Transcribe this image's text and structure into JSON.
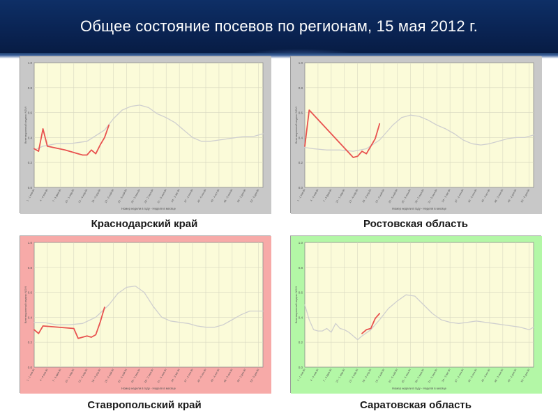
{
  "title": "Общее состояние посевов по регионам, 15 мая 2012 г.",
  "colors": {
    "header_bg": "#0b2a5c",
    "plot_bg": "#fbfbd9",
    "current_year_line": "#e8524f",
    "baseline_line": "#cfcfcf",
    "panel_gray": "#c8c8c8",
    "panel_red": "#f7aaa8",
    "panel_green": "#b3f7a6"
  },
  "chart_data": [
    {
      "type": "line",
      "region": "Краснодарский край",
      "frame": "gray",
      "ylabel": "Вегетационный индекс NDVI",
      "xlabel": "Номер недели в году - Неделя в месяце",
      "ylim": [
        0,
        1
      ],
      "yticks": [
        "0.0",
        "0.2",
        "0.4",
        "0.6",
        "0.8",
        "1.0"
      ],
      "xticks": [
        "1 - 1 янв Вт",
        "4 - 4 янв Вт",
        "7 - 3 фев Вт",
        "10 - 1 мар Вт",
        "13 - 4 мар Вт",
        "16 - 3 апр Вт",
        "19 - 2 май Вт",
        "22 - 5 май Вт",
        "25 - 3 июн Вт",
        "28 - 2 июл Вт",
        "31 - 5 июл Вт",
        "34 - 3 авг Вт",
        "37 - 2 сен Вт",
        "40 - 5 сен Вт",
        "43 - 4 окт Вт",
        "46 - 3 ноя Вт",
        "49 - 2 дек Вт",
        "52 - 5 дек Вт"
      ],
      "grid": true,
      "series": [
        {
          "x": [
            1,
            3,
            6,
            9,
            13,
            17,
            19,
            21,
            23,
            25,
            27,
            29,
            31,
            33,
            35,
            37,
            39,
            41,
            43,
            45,
            47,
            49,
            51,
            53
          ],
          "y": [
            0.3,
            0.33,
            0.35,
            0.35,
            0.37,
            0.46,
            0.55,
            0.62,
            0.65,
            0.66,
            0.64,
            0.59,
            0.56,
            0.52,
            0.46,
            0.4,
            0.37,
            0.37,
            0.38,
            0.39,
            0.4,
            0.41,
            0.41,
            0.43
          ]
        },
        {
          "x": [
            1,
            2,
            3,
            4,
            8,
            11,
            12,
            13,
            14,
            15,
            16,
            17,
            18
          ],
          "y": [
            0.31,
            0.29,
            0.47,
            0.33,
            0.3,
            0.27,
            0.26,
            0.26,
            0.3,
            0.27,
            0.34,
            0.4,
            0.5
          ]
        }
      ]
    },
    {
      "type": "line",
      "region": "Ростовская область",
      "frame": "gray",
      "ylabel": "Вегетационный индекс NDVI",
      "xlabel": "Номер недели в году - Неделя в месяце",
      "ylim": [
        0,
        1
      ],
      "yticks": [
        "0.0",
        "0.2",
        "0.4",
        "0.6",
        "0.8",
        "1.0"
      ],
      "xticks": [
        "1 - 1 янв Вт",
        "4 - 4 янв Вт",
        "7 - 3 фев Вт",
        "10 - 1 мар Вт",
        "13 - 4 мар Вт",
        "16 - 3 апр Вт",
        "19 - 2 май Вт",
        "22 - 5 май Вт",
        "25 - 3 июн Вт",
        "28 - 2 июл Вт",
        "31 - 5 июл Вт",
        "34 - 3 авг Вт",
        "37 - 2 сен Вт",
        "40 - 5 сен Вт",
        "43 - 4 окт Вт",
        "46 - 3 ноя Вт",
        "49 - 2 дек Вт",
        "52 - 5 дек Вт"
      ],
      "grid": true,
      "series": [
        {
          "x": [
            1,
            3,
            6,
            9,
            12,
            15,
            18,
            21,
            23,
            25,
            27,
            29,
            31,
            33,
            35,
            37,
            39,
            41,
            43,
            45,
            47,
            49,
            51,
            53
          ],
          "y": [
            0.32,
            0.31,
            0.3,
            0.3,
            0.29,
            0.31,
            0.38,
            0.5,
            0.56,
            0.58,
            0.57,
            0.54,
            0.5,
            0.47,
            0.43,
            0.38,
            0.35,
            0.34,
            0.35,
            0.37,
            0.39,
            0.4,
            0.4,
            0.42
          ]
        },
        {
          "x": [
            1,
            2,
            12,
            13,
            14,
            15,
            16,
            17,
            18
          ],
          "y": [
            0.33,
            0.62,
            0.24,
            0.25,
            0.29,
            0.27,
            0.33,
            0.39,
            0.51
          ]
        }
      ]
    },
    {
      "type": "line",
      "region": "Ставропольский край",
      "frame": "red",
      "ylabel": "Вегетационный индекс NDVI",
      "xlabel": "Номер недели в году - Неделя в месяце",
      "ylim": [
        0,
        1
      ],
      "yticks": [
        "0.0",
        "0.2",
        "0.4",
        "0.6",
        "0.8",
        "1.0"
      ],
      "xticks": [
        "1 - 1 янв Вт",
        "4 - 4 янв Вт",
        "7 - 3 фев Вт",
        "10 - 1 мар Вт",
        "13 - 4 мар Вт",
        "16 - 3 апр Вт",
        "19 - 2 май Вт",
        "22 - 5 май Вт",
        "25 - 3 июн Вт",
        "28 - 2 июл Вт",
        "31 - 5 июл Вт",
        "34 - 3 авг Вт",
        "37 - 2 сен Вт",
        "40 - 5 сен Вт",
        "43 - 4 окт Вт",
        "46 - 3 ноя Вт",
        "49 - 2 дек Вт",
        "52 - 5 дек Вт"
      ],
      "grid": true,
      "series": [
        {
          "x": [
            1,
            3,
            6,
            9,
            12,
            15,
            18,
            20,
            22,
            24,
            26,
            28,
            30,
            32,
            34,
            36,
            38,
            40,
            42,
            44,
            46,
            48,
            50,
            52,
            53
          ],
          "y": [
            0.36,
            0.36,
            0.34,
            0.34,
            0.35,
            0.4,
            0.5,
            0.59,
            0.64,
            0.65,
            0.6,
            0.49,
            0.4,
            0.37,
            0.36,
            0.35,
            0.33,
            0.32,
            0.32,
            0.34,
            0.38,
            0.42,
            0.45,
            0.45,
            0.45
          ]
        },
        {
          "x": [
            1,
            2,
            3,
            10,
            11,
            12,
            13,
            14,
            15,
            16,
            17
          ],
          "y": [
            0.3,
            0.27,
            0.33,
            0.31,
            0.23,
            0.24,
            0.25,
            0.24,
            0.26,
            0.36,
            0.48
          ]
        }
      ]
    },
    {
      "type": "line",
      "region": "Саратовская область",
      "frame": "green",
      "ylabel": "Вегетационный индекс NDVI",
      "xlabel": "Номер недели в году - Неделя в месяце",
      "ylim": [
        0,
        1
      ],
      "yticks": [
        "0.0",
        "0.2",
        "0.4",
        "0.6",
        "0.8",
        "1.0"
      ],
      "xticks": [
        "1 - 1 янв Вт",
        "4 - 4 янв Вт",
        "7 - 3 фев Вт",
        "10 - 1 мар Вт",
        "13 - 4 мар Вт",
        "16 - 3 апр Вт",
        "19 - 2 май Вт",
        "22 - 5 май Вт",
        "25 - 3 июн Вт",
        "28 - 2 июл Вт",
        "31 - 5 июл Вт",
        "34 - 3 авг Вт",
        "37 - 2 сен Вт",
        "40 - 5 сен Вт",
        "43 - 4 окт Вт",
        "46 - 3 ноя Вт",
        "49 - 2 дек Вт",
        "52 - 5 дек Вт"
      ],
      "grid": true,
      "series": [
        {
          "x": [
            1,
            2,
            3,
            4,
            5,
            6,
            7,
            8,
            9,
            10,
            11,
            12,
            13,
            14,
            16,
            18,
            20,
            22,
            24,
            26,
            28,
            30,
            32,
            34,
            36,
            38,
            40,
            42,
            44,
            46,
            48,
            50,
            52,
            53
          ],
          "y": [
            0.5,
            0.38,
            0.3,
            0.29,
            0.29,
            0.31,
            0.28,
            0.35,
            0.31,
            0.3,
            0.28,
            0.25,
            0.22,
            0.25,
            0.3,
            0.38,
            0.47,
            0.53,
            0.58,
            0.57,
            0.5,
            0.43,
            0.38,
            0.36,
            0.35,
            0.36,
            0.37,
            0.36,
            0.35,
            0.34,
            0.33,
            0.32,
            0.3,
            0.32
          ]
        },
        {
          "x": [
            14,
            15,
            16,
            17,
            18
          ],
          "y": [
            0.27,
            0.3,
            0.31,
            0.39,
            0.43
          ]
        }
      ]
    }
  ]
}
